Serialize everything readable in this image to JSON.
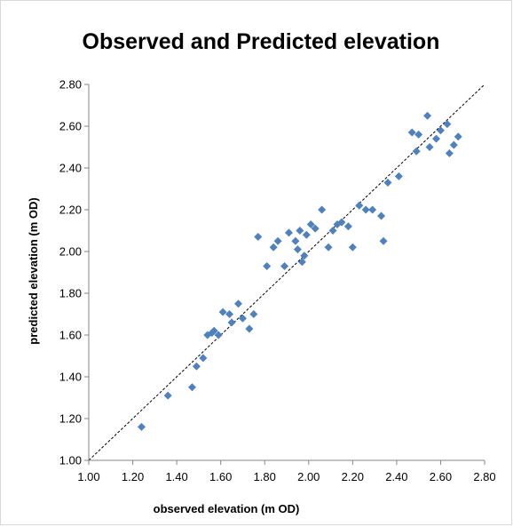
{
  "chart_data": {
    "type": "scatter",
    "title": "Observed and Predicted elevation",
    "xlabel": "observed elevation (m OD)",
    "ylabel": "predicted elevation (m OD)",
    "xlim": [
      1.0,
      2.8
    ],
    "ylim": [
      1.0,
      2.8
    ],
    "xticks": [
      "1.00",
      "1.20",
      "1.40",
      "1.60",
      "1.80",
      "2.00",
      "2.20",
      "2.40",
      "2.60",
      "2.80"
    ],
    "yticks": [
      "1.00",
      "1.20",
      "1.40",
      "1.60",
      "1.80",
      "2.00",
      "2.20",
      "2.40",
      "2.60",
      "2.80"
    ],
    "grid": false,
    "legend": "none",
    "reference_line": {
      "style": "dashed",
      "from": [
        1.0,
        1.0
      ],
      "to": [
        2.8,
        2.8
      ]
    },
    "marker_color": "#4F81BD",
    "points": [
      [
        1.24,
        1.16
      ],
      [
        1.36,
        1.31
      ],
      [
        1.47,
        1.35
      ],
      [
        1.49,
        1.45
      ],
      [
        1.52,
        1.49
      ],
      [
        1.54,
        1.6
      ],
      [
        1.56,
        1.61
      ],
      [
        1.57,
        1.62
      ],
      [
        1.59,
        1.6
      ],
      [
        1.61,
        1.71
      ],
      [
        1.64,
        1.7
      ],
      [
        1.65,
        1.66
      ],
      [
        1.68,
        1.75
      ],
      [
        1.7,
        1.68
      ],
      [
        1.73,
        1.63
      ],
      [
        1.75,
        1.7
      ],
      [
        1.77,
        2.07
      ],
      [
        1.81,
        1.93
      ],
      [
        1.84,
        2.02
      ],
      [
        1.86,
        2.05
      ],
      [
        1.89,
        1.93
      ],
      [
        1.91,
        2.09
      ],
      [
        1.94,
        2.05
      ],
      [
        1.95,
        2.01
      ],
      [
        1.96,
        2.1
      ],
      [
        1.97,
        1.95
      ],
      [
        1.98,
        1.98
      ],
      [
        1.99,
        2.08
      ],
      [
        2.01,
        2.13
      ],
      [
        2.03,
        2.11
      ],
      [
        2.06,
        2.2
      ],
      [
        2.09,
        2.02
      ],
      [
        2.11,
        2.1
      ],
      [
        2.13,
        2.13
      ],
      [
        2.15,
        2.14
      ],
      [
        2.18,
        2.12
      ],
      [
        2.2,
        2.02
      ],
      [
        2.23,
        2.22
      ],
      [
        2.26,
        2.2
      ],
      [
        2.29,
        2.2
      ],
      [
        2.33,
        2.17
      ],
      [
        2.34,
        2.05
      ],
      [
        2.36,
        2.33
      ],
      [
        2.41,
        2.36
      ],
      [
        2.47,
        2.57
      ],
      [
        2.49,
        2.48
      ],
      [
        2.5,
        2.56
      ],
      [
        2.54,
        2.65
      ],
      [
        2.55,
        2.5
      ],
      [
        2.58,
        2.54
      ],
      [
        2.6,
        2.58
      ],
      [
        2.63,
        2.61
      ],
      [
        2.64,
        2.47
      ],
      [
        2.66,
        2.51
      ],
      [
        2.68,
        2.55
      ]
    ]
  }
}
